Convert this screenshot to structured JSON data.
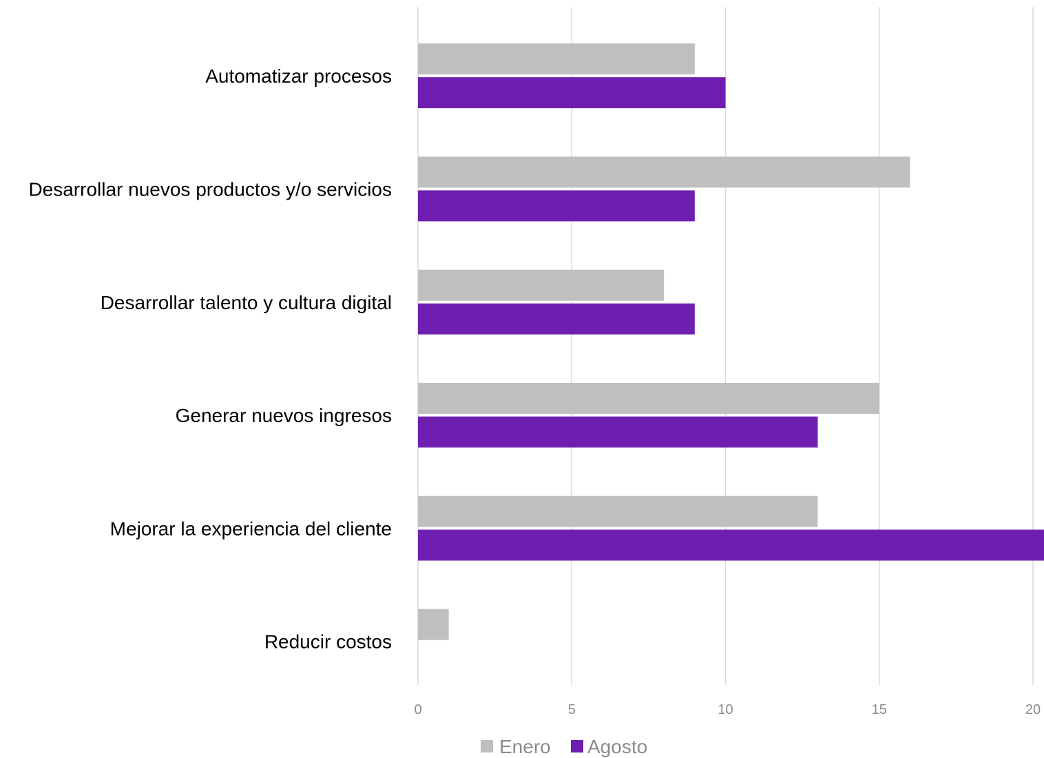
{
  "chart_data": {
    "type": "bar",
    "orientation": "horizontal",
    "categories": [
      "Automatizar procesos",
      "Desarrollar nuevos productos y/o servicios",
      "Desarrollar talento y cultura digital",
      "Generar nuevos ingresos",
      "Mejorar la experiencia del cliente",
      "Reducir costos"
    ],
    "series": [
      {
        "name": "Enero",
        "color": "#bfbfbf",
        "values": [
          9,
          16,
          8,
          15,
          13,
          1
        ]
      },
      {
        "name": "Agosto",
        "color": "#6f1fb0",
        "values": [
          10,
          9,
          9,
          13,
          21,
          0
        ]
      }
    ],
    "xlim": [
      0,
      20
    ],
    "xticks": [
      "0",
      "5",
      "10",
      "15",
      "20"
    ],
    "title": "",
    "xlabel": "",
    "ylabel": "",
    "grid": "vertical",
    "legend": "bottom"
  }
}
